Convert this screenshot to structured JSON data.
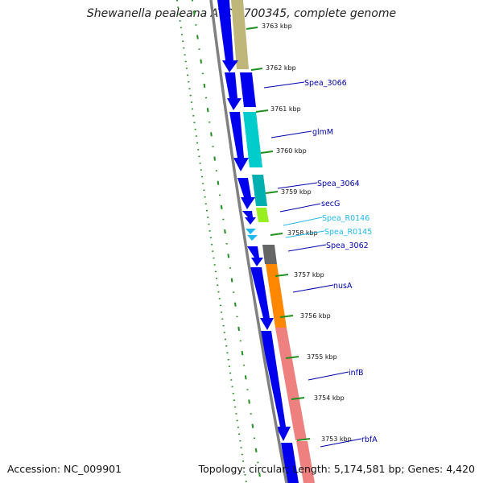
{
  "title": "Shewanella pealeana ATCC 700345, complete genome",
  "footer": {
    "accession": "Accession: NC_009901",
    "summary": "Topology: circular; Length: 5,174,581 bp; Genes: 4,420"
  },
  "colors": {
    "arrow_blue": "#0000ee",
    "label_blue": "#0000aa",
    "label_cyan": "#22b8ee",
    "backbone": "#808080",
    "gc_green": "#1f8f1f"
  },
  "ticks": [
    {
      "label": "3763 kbp"
    },
    {
      "label": "3762 kbp"
    },
    {
      "label": "3761 kbp"
    },
    {
      "label": "3760 kbp"
    },
    {
      "label": "3759 kbp"
    },
    {
      "label": "3758 kbp"
    },
    {
      "label": "3757 kbp"
    },
    {
      "label": "3756 kbp"
    },
    {
      "label": "3755 kbp"
    },
    {
      "label": "3754 kbp"
    },
    {
      "label": "3753 kbp"
    }
  ],
  "genes": [
    {
      "name": "Spea_3066",
      "kind": "cds",
      "cog_color": "#0000ee"
    },
    {
      "name": "glmM",
      "kind": "cds",
      "cog_color": "#00cccc"
    },
    {
      "name": "Spea_3064",
      "kind": "cds",
      "cog_color": "#00b0b0"
    },
    {
      "name": "secG",
      "kind": "cds",
      "cog_color": "#99ee22"
    },
    {
      "name": "Spea_R0146",
      "kind": "trna",
      "cog_color": null
    },
    {
      "name": "Spea_R0145",
      "kind": "trna",
      "cog_color": null
    },
    {
      "name": "Spea_3062",
      "kind": "cds",
      "cog_color": "#666666"
    },
    {
      "name": "nusA",
      "kind": "cds",
      "cog_color": "#ff8800"
    },
    {
      "name": "infB",
      "kind": "cds",
      "cog_color": "#ee8080"
    },
    {
      "name": "rbfA",
      "kind": "cds",
      "cog_color": "#ee8080"
    }
  ]
}
